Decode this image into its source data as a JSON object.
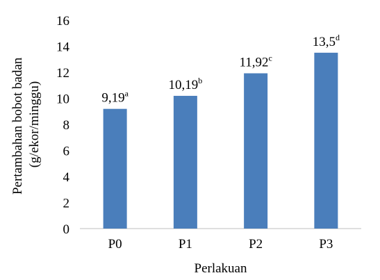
{
  "chart_data": {
    "type": "bar",
    "categories": [
      "P0",
      "P1",
      "P2",
      "P3"
    ],
    "values": [
      9.19,
      10.19,
      11.92,
      13.5
    ],
    "data_labels": [
      {
        "value": "9,19",
        "sup": "a"
      },
      {
        "value": "10,19",
        "sup": "b"
      },
      {
        "value": "11,92",
        "sup": "c"
      },
      {
        "value": "13,5",
        "sup": "d"
      }
    ],
    "ylim": [
      0,
      16
    ],
    "yticks": [
      "0",
      "2",
      "4",
      "6",
      "8",
      "10",
      "12",
      "14",
      "16"
    ],
    "xlabel": "Perlakuan",
    "ylabel_lines": [
      "Pertambahan bobot badan",
      "(g/ekor/minggu)"
    ],
    "grid": false,
    "legend": "none",
    "bar_color": "#4a7ebb",
    "axis_color": "#bfbfbf"
  }
}
